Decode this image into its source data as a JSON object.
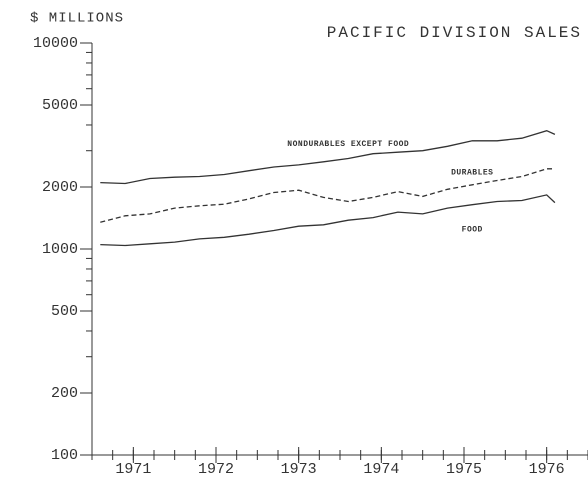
{
  "chart_data": {
    "type": "line",
    "title": "PACIFIC DIVISION SALES",
    "y_label": "$ MILLIONS",
    "y_scale": "log",
    "x": [
      1970.6,
      1970.9,
      1971.2,
      1971.5,
      1971.8,
      1972.1,
      1972.4,
      1972.7,
      1973.0,
      1973.3,
      1973.6,
      1973.9,
      1974.2,
      1974.5,
      1974.8,
      1975.1,
      1975.4,
      1975.7,
      1976.0,
      1976.1
    ],
    "series": [
      {
        "name": "NONDURABLES EXCEPT FOOD",
        "color": "#333333",
        "style": "solid",
        "values": [
          2100,
          2080,
          2200,
          2230,
          2250,
          2300,
          2400,
          2500,
          2560,
          2650,
          2750,
          2900,
          2950,
          3000,
          3150,
          3350,
          3350,
          3450,
          3750,
          3600
        ]
      },
      {
        "name": "DURABLES",
        "color": "#333333",
        "style": "dashed",
        "values": [
          1350,
          1450,
          1480,
          1580,
          1620,
          1650,
          1750,
          1880,
          1930,
          1780,
          1700,
          1780,
          1900,
          1800,
          1950,
          2050,
          2150,
          2250,
          2450,
          2450
        ]
      },
      {
        "name": "FOOD",
        "color": "#333333",
        "style": "solid",
        "values": [
          1050,
          1040,
          1060,
          1080,
          1120,
          1140,
          1180,
          1230,
          1290,
          1310,
          1380,
          1420,
          1510,
          1480,
          1580,
          1640,
          1700,
          1720,
          1830,
          1680
        ]
      }
    ],
    "xlim": [
      1970.5,
      1976.5
    ],
    "xticks": [
      1971,
      1972,
      1973,
      1974,
      1975,
      1976
    ],
    "x_minor_ticks": [
      1970.5,
      1970.75,
      1971,
      1971.25,
      1971.5,
      1971.75,
      1972,
      1972.25,
      1972.5,
      1972.75,
      1973,
      1973.25,
      1973.5,
      1973.75,
      1974,
      1974.25,
      1974.5,
      1974.75,
      1975,
      1975.25,
      1975.5,
      1975.75,
      1976,
      1976.25,
      1976.5
    ],
    "ylim": [
      100,
      10000
    ],
    "yticks": [
      100,
      200,
      500,
      1000,
      2000,
      5000,
      10000
    ],
    "y_minor_ticks": [
      300,
      400,
      600,
      700,
      800,
      900,
      3000,
      4000,
      6000,
      7000,
      8000,
      9000
    ]
  }
}
